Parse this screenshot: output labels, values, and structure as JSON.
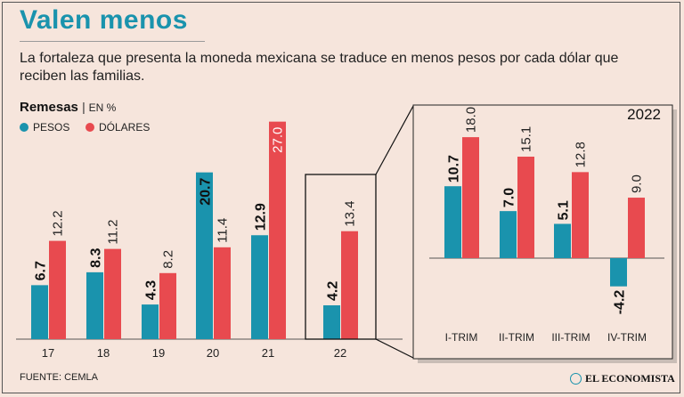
{
  "title": "Valen menos",
  "subtitle": "La fortaleza que presenta la moneda mexicana se traduce en menos pesos por cada dólar que reciben las familias.",
  "legend": {
    "title": "Remesas",
    "unit": "EN %",
    "pesos_label": "PESOS",
    "dolares_label": "DÓLARES"
  },
  "colors": {
    "pesos": "#1a93ad",
    "dolares": "#e84a4f",
    "background": "#f6e5dc",
    "inset_bg": "#f6e5dc"
  },
  "footer": {
    "source": "FUENTE: CEMLA",
    "brand": "EL ECONOMISTA"
  },
  "chart_data": [
    {
      "type": "bar",
      "title": "Remesas",
      "ylabel": "EN %",
      "categories": [
        "17",
        "18",
        "19",
        "20",
        "21",
        "22"
      ],
      "series": [
        {
          "name": "PESOS",
          "values": [
            6.7,
            8.3,
            4.3,
            20.7,
            12.9,
            4.2
          ],
          "labels": [
            "6.7",
            "8.3",
            "4.3",
            "20.7",
            "12.9",
            "4.2"
          ]
        },
        {
          "name": "DÓLARES",
          "values": [
            12.2,
            11.2,
            8.2,
            11.4,
            27.0,
            13.4
          ],
          "labels": [
            "12.2",
            "11.2",
            "8.2",
            "11.4",
            "27.0",
            "13.4"
          ]
        }
      ],
      "ylim": [
        0,
        28
      ]
    },
    {
      "type": "bar",
      "title": "2022",
      "categories": [
        "I-TRIM",
        "II-TRIM",
        "III-TRIM",
        "IV-TRIM"
      ],
      "series": [
        {
          "name": "PESOS",
          "values": [
            10.7,
            7.0,
            5.1,
            -4.2
          ],
          "labels": [
            "10.7",
            "7.0",
            "5.1",
            "-4.2"
          ]
        },
        {
          "name": "DÓLARES",
          "values": [
            18.0,
            15.1,
            12.8,
            9.0
          ],
          "labels": [
            "18.0",
            "15.1",
            "12.8",
            "9.0"
          ]
        }
      ],
      "ylim": [
        -5,
        19
      ]
    }
  ]
}
